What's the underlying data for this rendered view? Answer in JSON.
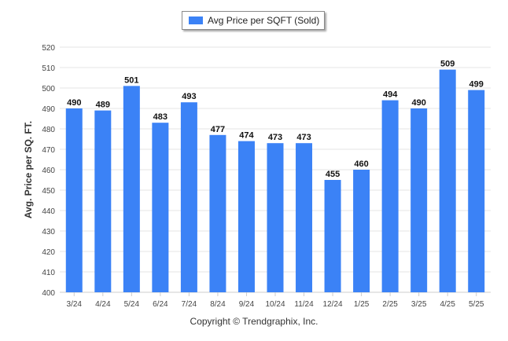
{
  "legend": {
    "label": "Avg Price per SQFT (Sold)"
  },
  "credit": "Copyright © Trendgraphix, Inc.",
  "colors": {
    "bar": "#3b82f6",
    "grid": "#e4e4e4",
    "axis": "#cccccc"
  },
  "chart_data": {
    "type": "bar",
    "categories": [
      "3/24",
      "4/24",
      "5/24",
      "6/24",
      "7/24",
      "8/24",
      "9/24",
      "10/24",
      "11/24",
      "12/24",
      "1/25",
      "2/25",
      "3/25",
      "4/25",
      "5/25"
    ],
    "series": [
      {
        "name": "Avg Price per SQFT (Sold)",
        "values": [
          490,
          489,
          501,
          483,
          493,
          477,
          474,
          473,
          473,
          455,
          460,
          494,
          490,
          509,
          499
        ]
      }
    ],
    "ylabel": "Avg. Price per SQ. FT.",
    "xlabel": "",
    "ylim": [
      400,
      520
    ],
    "yticks": [
      400,
      410,
      420,
      430,
      440,
      450,
      460,
      470,
      480,
      490,
      500,
      510,
      520
    ],
    "grid": true,
    "legend_position": "top-center",
    "data_labels": true
  }
}
